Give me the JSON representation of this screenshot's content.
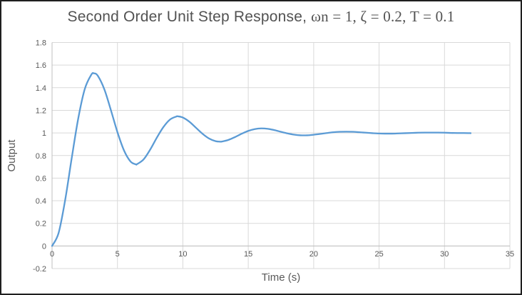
{
  "chart_data": {
    "type": "line",
    "title": "Second Order Unit Step Response, ωn = 1, ζ = 0.2, T = 0.1",
    "title_sans": "Second Order Unit Step Response, ",
    "title_serif": "ωn = 1, ζ = 0.2, T = 0.1",
    "xlabel": "Time (s)",
    "ylabel": "Output",
    "xlim": [
      0,
      35
    ],
    "ylim": [
      -0.2,
      1.8
    ],
    "grid": true,
    "legend_position": "none",
    "x_ticks": [
      {
        "v": 0,
        "label": "0"
      },
      {
        "v": 5,
        "label": "5"
      },
      {
        "v": 10,
        "label": "10"
      },
      {
        "v": 15,
        "label": "15"
      },
      {
        "v": 20,
        "label": "20"
      },
      {
        "v": 25,
        "label": "25"
      },
      {
        "v": 30,
        "label": "30"
      },
      {
        "v": 35,
        "label": "35"
      }
    ],
    "y_ticks": [
      {
        "v": 1.8,
        "label": "1.8"
      },
      {
        "v": 1.6,
        "label": "1.6"
      },
      {
        "v": 1.4,
        "label": "1.4"
      },
      {
        "v": 1.2,
        "label": "1.2"
      },
      {
        "v": 1.0,
        "label": "1"
      },
      {
        "v": 0.8,
        "label": "0.8"
      },
      {
        "v": 0.6,
        "label": "0.6"
      },
      {
        "v": 0.4,
        "label": "0.4"
      },
      {
        "v": 0.2,
        "label": "0.2"
      },
      {
        "v": 0.0,
        "label": "0"
      },
      {
        "v": -0.2,
        "label": "-0.2"
      }
    ],
    "series": [
      {
        "name": "Output",
        "color": "#5B9BD5",
        "points": [
          [
            0,
            0
          ],
          [
            0.5,
            0.115
          ],
          [
            1,
            0.405
          ],
          [
            1.5,
            0.775
          ],
          [
            2,
            1.127
          ],
          [
            2.5,
            1.388
          ],
          [
            3,
            1.515
          ],
          [
            3.21,
            1.527
          ],
          [
            3.5,
            1.505
          ],
          [
            4,
            1.385
          ],
          [
            4.5,
            1.201
          ],
          [
            5,
            1.006
          ],
          [
            5.5,
            0.845
          ],
          [
            6,
            0.747
          ],
          [
            6.41,
            0.722
          ],
          [
            6.5,
            0.724
          ],
          [
            7,
            0.766
          ],
          [
            7.5,
            0.852
          ],
          [
            8,
            0.956
          ],
          [
            8.5,
            1.05
          ],
          [
            9,
            1.117
          ],
          [
            9.5,
            1.145
          ],
          [
            9.62,
            1.147
          ],
          [
            10,
            1.136
          ],
          [
            10.5,
            1.099
          ],
          [
            11,
            1.046
          ],
          [
            11.5,
            0.993
          ],
          [
            12,
            0.951
          ],
          [
            12.5,
            0.927
          ],
          [
            12.83,
            0.923
          ],
          [
            13,
            0.924
          ],
          [
            13.5,
            0.939
          ],
          [
            14,
            0.964
          ],
          [
            14.5,
            0.993
          ],
          [
            15,
            1.018
          ],
          [
            15.5,
            1.034
          ],
          [
            16,
            1.04
          ],
          [
            16.5,
            1.036
          ],
          [
            17,
            1.025
          ],
          [
            17.5,
            1.01
          ],
          [
            18,
            0.996
          ],
          [
            18.5,
            0.985
          ],
          [
            19,
            0.979
          ],
          [
            19.5,
            0.979
          ],
          [
            20,
            0.984
          ],
          [
            20.5,
            0.991
          ],
          [
            21,
            0.999
          ],
          [
            21.5,
            1.006
          ],
          [
            22,
            1.01
          ],
          [
            22.5,
            1.011
          ],
          [
            23,
            1.01
          ],
          [
            23.5,
            1.006
          ],
          [
            24,
            1.002
          ],
          [
            24.5,
            0.998
          ],
          [
            25,
            0.995
          ],
          [
            25.5,
            0.994
          ],
          [
            26,
            0.994
          ],
          [
            26.5,
            0.996
          ],
          [
            27,
            0.998
          ],
          [
            27.5,
            1
          ],
          [
            28,
            1.002
          ],
          [
            28.5,
            1.003
          ],
          [
            29,
            1.003
          ],
          [
            29.5,
            1.003
          ],
          [
            30,
            1.002
          ],
          [
            30.5,
            1
          ],
          [
            31,
            0.999
          ],
          [
            31.5,
            0.999
          ],
          [
            32,
            0.998
          ]
        ]
      }
    ],
    "colors": {
      "line": "#5B9BD5",
      "gridline": "#D9D9D9",
      "axis_line": "#BFBFBF",
      "tick_text": "#595959",
      "title_text": "#525252",
      "frame_border": "#1F1F1F",
      "background": "#FFFFFF"
    }
  }
}
